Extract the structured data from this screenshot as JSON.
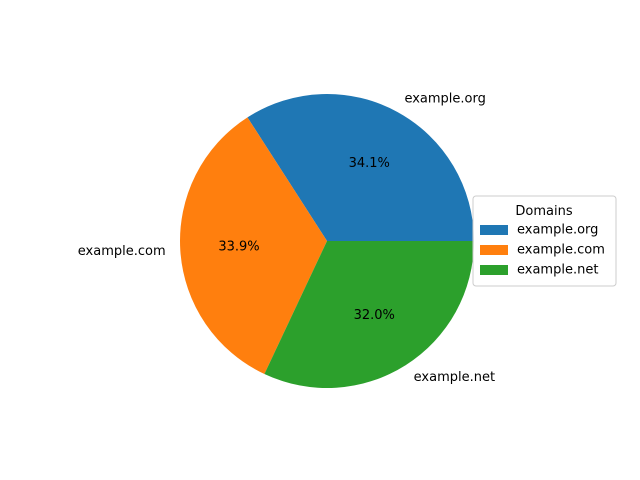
{
  "chart_data": {
    "type": "pie",
    "categories": [
      "example.org",
      "example.com",
      "example.net"
    ],
    "values": [
      34.1,
      33.9,
      32.0
    ],
    "value_labels": [
      "34.1%",
      "33.9%",
      "32.0%"
    ],
    "colors": [
      "#1f77b4",
      "#ff7f0e",
      "#2ca02c"
    ],
    "start_angle_deg": 0,
    "direction": "counterclockwise",
    "legend": {
      "title": "Domains",
      "placement": "center-right",
      "entries": [
        "example.org",
        "example.com",
        "example.net"
      ]
    }
  }
}
